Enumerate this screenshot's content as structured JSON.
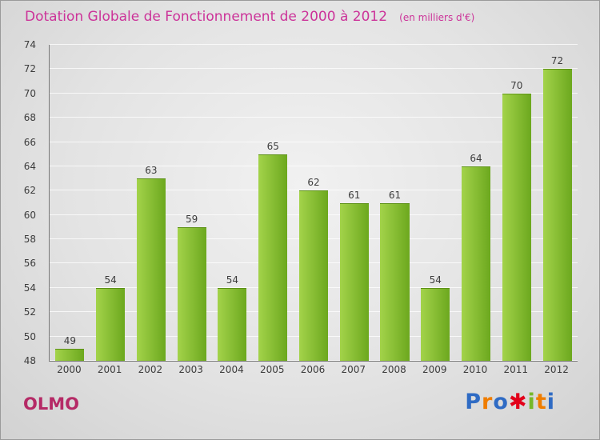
{
  "header": {
    "title": "Dotation Globale de Fonctionnement de 2000 à 2012",
    "subtitle": "(en milliers d'€)"
  },
  "footer": {
    "left": "OLMO"
  },
  "logo": {
    "name": "Proxiti",
    "letters": [
      {
        "ch": "P",
        "color": "#2f6bc4"
      },
      {
        "ch": "r",
        "color": "#ef7d00"
      },
      {
        "ch": "o",
        "color": "#2f6bc4"
      },
      {
        "ch": "✱",
        "color": "#e2001a"
      },
      {
        "ch": "i",
        "color": "#76b82a"
      },
      {
        "ch": "t",
        "color": "#ef7d00"
      },
      {
        "ch": "i",
        "color": "#2f6bc4"
      }
    ]
  },
  "colors": {
    "title": "#cc3399",
    "footer_left": "#b52a66",
    "bar_gradient_left": "#a3d34a",
    "bar_gradient_right": "#6ca81e",
    "axis": "#777777",
    "tick_text": "#3c3c3c",
    "gridline": "rgba(255,255,255,0.75)"
  },
  "chart_data": {
    "type": "bar",
    "title": "Dotation Globale de Fonctionnement de 2000 à 2012",
    "subtitle": "(en milliers d'€)",
    "categories": [
      "2000",
      "2001",
      "2002",
      "2003",
      "2004",
      "2005",
      "2006",
      "2007",
      "2008",
      "2009",
      "2010",
      "2011",
      "2012"
    ],
    "values": [
      49,
      54,
      63,
      59,
      54,
      65,
      62,
      61,
      61,
      54,
      64,
      70,
      72
    ],
    "xlabel": "",
    "ylabel": "",
    "ylim": [
      48,
      74
    ],
    "ytick_step": 2,
    "yticks": [
      48,
      50,
      52,
      54,
      56,
      58,
      60,
      62,
      64,
      66,
      68,
      70,
      72,
      74
    ],
    "grid": true,
    "legend": "none",
    "bar_color": "#76b82a",
    "value_labels_shown": true
  }
}
